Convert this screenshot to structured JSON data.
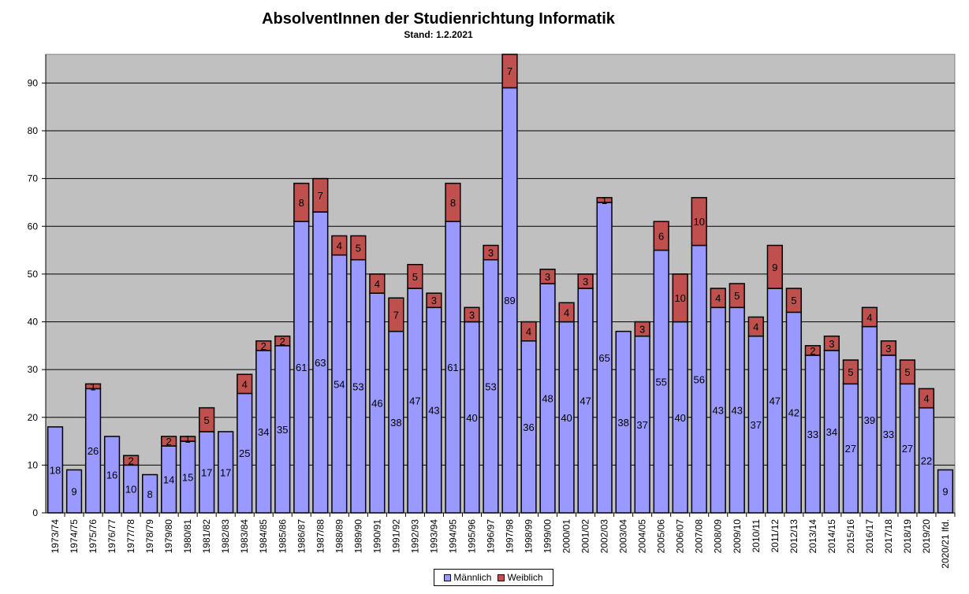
{
  "chart_data": {
    "type": "bar",
    "stacked": true,
    "title": "AbsolventInnen der Studienrichtung Informatik",
    "subtitle": "Stand: 1.2.2021",
    "xlabel": "",
    "ylabel": "",
    "ylim": [
      0,
      96
    ],
    "yticks": [
      0,
      10,
      20,
      30,
      40,
      50,
      60,
      70,
      80,
      90
    ],
    "grid": true,
    "legend_position": "bottom",
    "categories": [
      "1973/74",
      "1974/75",
      "1975/76",
      "1976/77",
      "1977/78",
      "1978/79",
      "1979/80",
      "1980/81",
      "1981/82",
      "1982/83",
      "1983/84",
      "1984/85",
      "1985/86",
      "1986/87",
      "1987/88",
      "1988/89",
      "1989/90",
      "1990/91",
      "1991/92",
      "1992/93",
      "1993/94",
      "1994/95",
      "1995/96",
      "1996/97",
      "1997/98",
      "1998/99",
      "1999/00",
      "2000/01",
      "2001/02",
      "2002/03",
      "2003/04",
      "2004/05",
      "2005/06",
      "2006/07",
      "2007/08",
      "2008/09",
      "2009/10",
      "2010/11",
      "2011/12",
      "2012/13",
      "2013/14",
      "2014/15",
      "2015/16",
      "2016/17",
      "2017/18",
      "2018/19",
      "2019/20",
      "2020/21 lfd."
    ],
    "series": [
      {
        "name": "Männlich",
        "color": "#9999ff",
        "values": [
          18,
          9,
          26,
          16,
          10,
          8,
          14,
          15,
          17,
          17,
          25,
          34,
          35,
          61,
          63,
          54,
          53,
          46,
          38,
          47,
          43,
          61,
          40,
          53,
          89,
          36,
          48,
          40,
          47,
          65,
          38,
          37,
          55,
          40,
          56,
          43,
          43,
          37,
          47,
          42,
          33,
          34,
          27,
          39,
          33,
          27,
          22,
          9
        ]
      },
      {
        "name": "Weiblich",
        "color": "#c0504d",
        "values": [
          0,
          0,
          1,
          0,
          2,
          0,
          2,
          1,
          5,
          0,
          4,
          2,
          2,
          8,
          7,
          4,
          5,
          4,
          7,
          5,
          3,
          8,
          3,
          3,
          7,
          4,
          3,
          4,
          3,
          1,
          0,
          3,
          6,
          10,
          10,
          4,
          5,
          4,
          9,
          5,
          2,
          3,
          5,
          4,
          3,
          5,
          4,
          0
        ]
      }
    ],
    "plot_background": "#c0c0c0"
  }
}
